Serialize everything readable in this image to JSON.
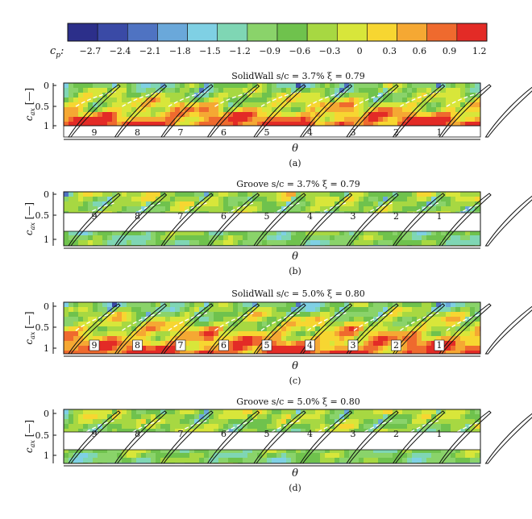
{
  "colorbar": {
    "symbol": "c",
    "subscript": "p",
    "ticks": [
      "−2.7",
      "−2.4",
      "−2.1",
      "−1.8",
      "−1.5",
      "−1.2",
      "−0.9",
      "−0.6",
      "−0.3",
      "0",
      "0.3",
      "0.6",
      "0.9",
      "1.2"
    ],
    "colors": [
      "#2c2f8a",
      "#3a4aa6",
      "#4f73c2",
      "#6aa8da",
      "#7fd0e4",
      "#7fd6b4",
      "#8ad36a",
      "#6fc24d",
      "#a7d842",
      "#d8e63a",
      "#f7d631",
      "#f5a833",
      "#ef6a2e",
      "#e32b26"
    ]
  },
  "chart_data": [
    {
      "type": "heatmap",
      "title": "SolidWall s/c = 3.7% ξ = 0.79",
      "caption": "(a)",
      "xlabel": "θ",
      "ylabel": "c_ax [—]",
      "yticks": [
        "0",
        "0.5",
        "1"
      ],
      "configuration": "SolidWall",
      "clearance_s_over_c_percent": 3.7,
      "xi": 0.79,
      "passages": [
        "9",
        "8",
        "7",
        "6",
        "5",
        "4",
        "3",
        "2",
        "1"
      ],
      "passage_label_style": "plain"
    },
    {
      "type": "heatmap",
      "title": "Groove s/c = 3.7% ξ = 0.79",
      "caption": "(b)",
      "xlabel": "θ",
      "ylabel": "c_ax [—]",
      "yticks": [
        "0",
        "0.5",
        "1"
      ],
      "configuration": "Groove",
      "clearance_s_over_c_percent": 3.7,
      "xi": 0.79,
      "passages": [
        "9",
        "8",
        "7",
        "6",
        "5",
        "4",
        "3",
        "2",
        "1"
      ],
      "passage_label_style": "plain"
    },
    {
      "type": "heatmap",
      "title": "SolidWall s/c = 5.0% ξ = 0.80",
      "caption": "(c)",
      "xlabel": "θ",
      "ylabel": "c_ax [—]",
      "yticks": [
        "0",
        "0.5",
        "1"
      ],
      "configuration": "SolidWall",
      "clearance_s_over_c_percent": 5.0,
      "xi": 0.8,
      "passages": [
        "9",
        "8",
        "7",
        "6",
        "5",
        "4",
        "3",
        "2",
        "1"
      ],
      "passage_label_style": "boxed"
    },
    {
      "type": "heatmap",
      "title": "Groove s/c = 5.0% ξ = 0.80",
      "caption": "(d)",
      "xlabel": "θ",
      "ylabel": "c_ax [—]",
      "yticks": [
        "0",
        "0.5",
        "1"
      ],
      "configuration": "Groove",
      "clearance_s_over_c_percent": 5.0,
      "xi": 0.8,
      "passages": [
        "9",
        "8",
        "7",
        "6",
        "5",
        "4",
        "3",
        "2",
        "1"
      ],
      "passage_label_style": "plain"
    }
  ]
}
